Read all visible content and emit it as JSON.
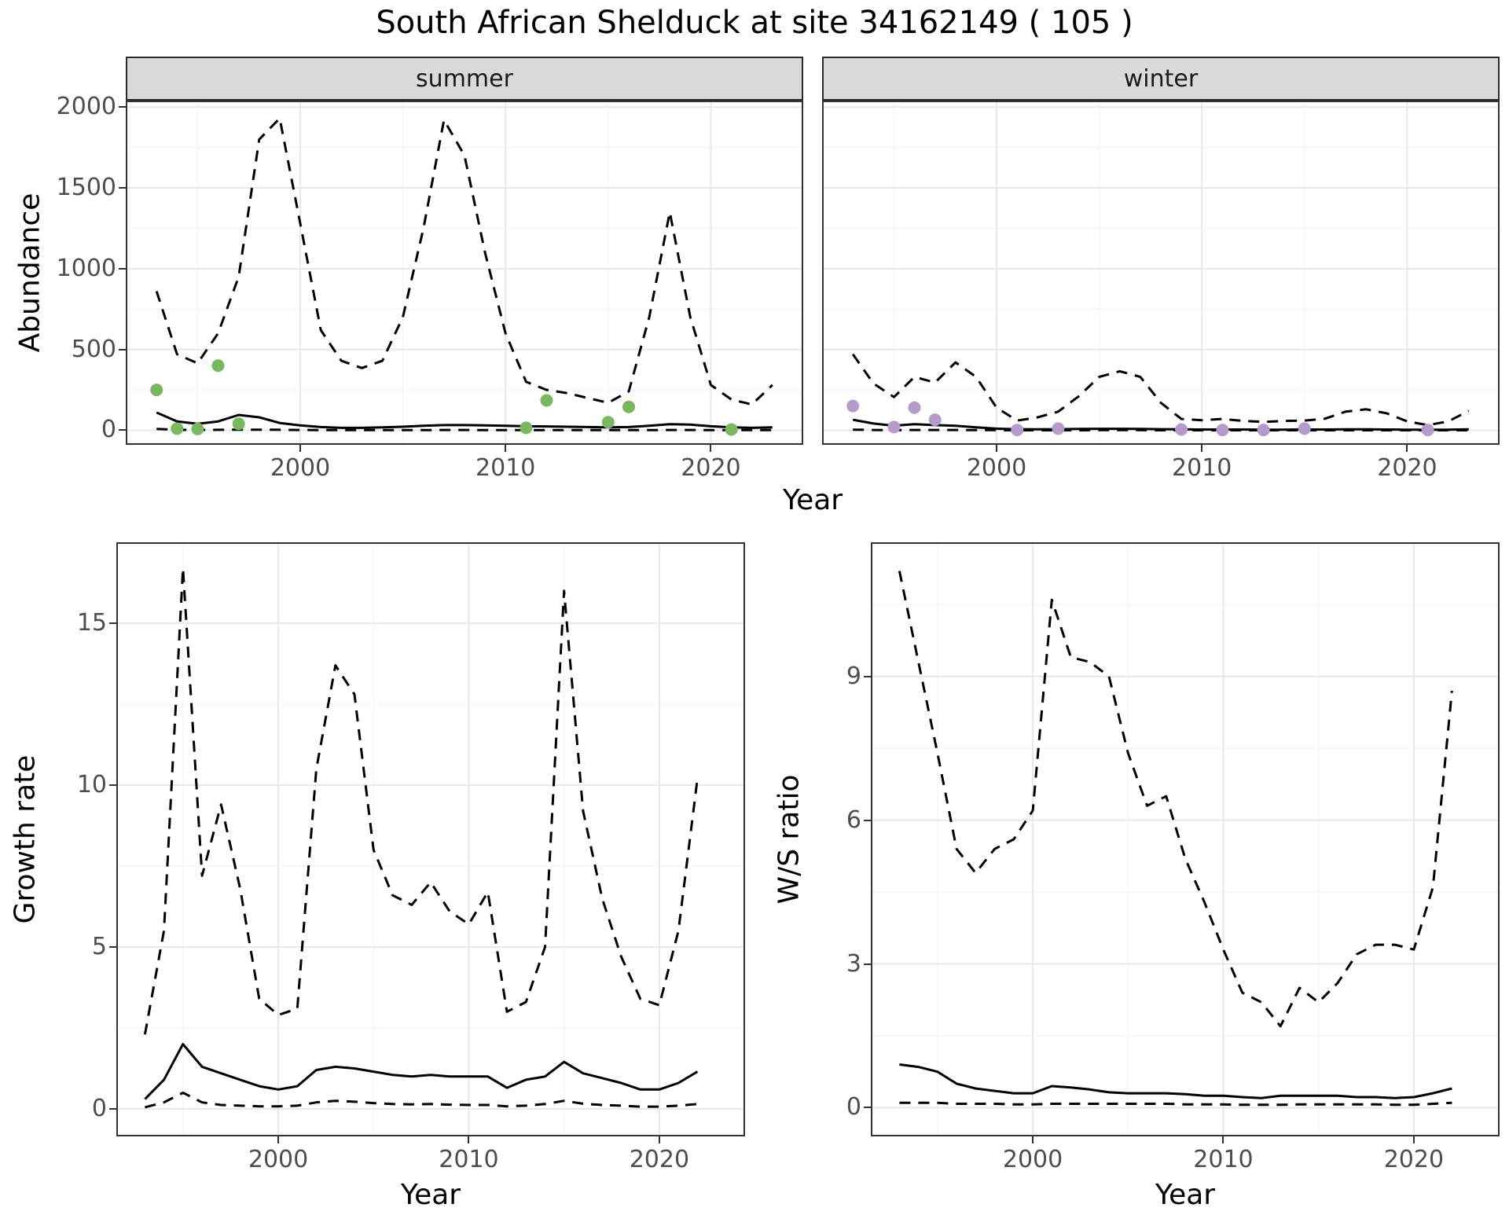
{
  "title": "South African Shelduck at site 34162149 ( 105 )",
  "colors": {
    "line": "#000000",
    "grid_major": "#e6e6e6",
    "grid_minor": "#f3f3f3",
    "panel_border": "#333333",
    "strip_bg": "#d9d9d9",
    "strip_text": "#1a1a1a",
    "tick_text": "#4d4d4d",
    "summer_points": "#7bb661",
    "winter_points": "#b49bca"
  },
  "top": {
    "ylabel": "Abundance",
    "xlabel": "Year",
    "facets": [
      "summer",
      "winter"
    ]
  },
  "bottom_left": {
    "ylabel": "Growth rate",
    "xlabel": "Year"
  },
  "bottom_right": {
    "ylabel": "W/S ratio",
    "xlabel": "Year"
  },
  "chart_data": [
    {
      "id": "abundance-summer",
      "type": "line",
      "facet": "summer",
      "xlabel": "Year",
      "ylabel": "Abundance",
      "x": [
        1993,
        1994,
        1995,
        1996,
        1997,
        1998,
        1999,
        2000,
        2001,
        2002,
        2003,
        2004,
        2005,
        2006,
        2007,
        2008,
        2009,
        2010,
        2011,
        2012,
        2013,
        2014,
        2015,
        2016,
        2017,
        2018,
        2019,
        2020,
        2021,
        2022,
        2023
      ],
      "series": [
        {
          "name": "upper-95-ci",
          "style": "dashed",
          "values": [
            860,
            470,
            415,
            600,
            950,
            1800,
            1930,
            1280,
            620,
            430,
            385,
            430,
            700,
            1250,
            1920,
            1700,
            1100,
            600,
            300,
            250,
            230,
            200,
            170,
            240,
            700,
            1350,
            700,
            280,
            190,
            160,
            280
          ]
        },
        {
          "name": "model-median",
          "style": "solid",
          "values": [
            110,
            55,
            40,
            55,
            95,
            80,
            45,
            30,
            20,
            15,
            15,
            18,
            22,
            28,
            32,
            32,
            30,
            28,
            25,
            24,
            22,
            20,
            18,
            20,
            28,
            38,
            35,
            25,
            18,
            15,
            18
          ]
        },
        {
          "name": "lower-95-ci",
          "style": "dashed",
          "values": [
            8,
            3,
            2,
            3,
            4,
            4,
            3,
            2,
            1,
            1,
            1,
            1,
            1,
            1,
            2,
            2,
            1,
            1,
            1,
            1,
            1,
            1,
            1,
            1,
            1,
            2,
            2,
            1,
            1,
            1,
            1
          ]
        }
      ],
      "points": {
        "name": "observed-summer-count",
        "color": "#7bb661",
        "x": [
          1993,
          1994,
          1995,
          1996,
          1997,
          2011,
          2012,
          2015,
          2016,
          2021
        ],
        "y": [
          250,
          10,
          8,
          400,
          40,
          15,
          185,
          50,
          145,
          5
        ]
      },
      "xlim": [
        1991.5,
        2024.5
      ],
      "ylim": [
        -90,
        2040
      ],
      "xticks": [
        2000,
        2010,
        2020
      ],
      "yticks": [
        0,
        500,
        1000,
        1500,
        2000
      ],
      "grid": true,
      "legend": "none"
    },
    {
      "id": "abundance-winter",
      "type": "line",
      "facet": "winter",
      "xlabel": "Year",
      "ylabel": "Abundance",
      "x": [
        1993,
        1994,
        1995,
        1996,
        1997,
        1998,
        1999,
        2000,
        2001,
        2002,
        2003,
        2004,
        2005,
        2006,
        2007,
        2008,
        2009,
        2010,
        2011,
        2012,
        2013,
        2014,
        2015,
        2016,
        2017,
        2018,
        2019,
        2020,
        2021,
        2022,
        2023
      ],
      "series": [
        {
          "name": "upper-95-ci",
          "style": "dashed",
          "values": [
            470,
            290,
            205,
            330,
            295,
            420,
            330,
            140,
            60,
            80,
            115,
            210,
            330,
            365,
            330,
            170,
            70,
            62,
            70,
            58,
            52,
            58,
            60,
            72,
            115,
            130,
            105,
            55,
            32,
            55,
            120
          ]
        },
        {
          "name": "model-median",
          "style": "solid",
          "values": [
            65,
            42,
            28,
            38,
            32,
            28,
            18,
            10,
            7,
            6,
            7,
            8,
            9,
            9,
            8,
            7,
            6,
            5,
            5,
            5,
            4,
            4,
            5,
            5,
            6,
            6,
            5,
            4,
            3,
            4,
            6
          ]
        },
        {
          "name": "lower-95-ci",
          "style": "dashed",
          "values": [
            4,
            2,
            1,
            2,
            2,
            2,
            1,
            1,
            0,
            0,
            0,
            0,
            1,
            1,
            1,
            0,
            0,
            0,
            0,
            0,
            0,
            0,
            0,
            0,
            0,
            0,
            0,
            0,
            0,
            0,
            0
          ]
        }
      ],
      "points": {
        "name": "observed-winter-count",
        "color": "#b49bca",
        "x": [
          1993,
          1995,
          1996,
          1997,
          2001,
          2003,
          2009,
          2011,
          2013,
          2015,
          2021
        ],
        "y": [
          150,
          20,
          140,
          65,
          2,
          10,
          5,
          2,
          2,
          10,
          2
        ]
      },
      "xlim": [
        1991.5,
        2024.5
      ],
      "ylim": [
        -90,
        2040
      ],
      "xticks": [
        2000,
        2010,
        2020
      ],
      "yticks": [
        0,
        500,
        1000,
        1500,
        2000
      ],
      "grid": true,
      "legend": "none"
    },
    {
      "id": "growth-rate",
      "type": "line",
      "xlabel": "Year",
      "ylabel": "Growth rate",
      "x": [
        1993,
        1994,
        1995,
        1996,
        1997,
        1998,
        1999,
        2000,
        2001,
        2002,
        2003,
        2004,
        2005,
        2006,
        2007,
        2008,
        2009,
        2010,
        2011,
        2012,
        2013,
        2014,
        2015,
        2016,
        2017,
        2018,
        2019,
        2020,
        2021,
        2022
      ],
      "series": [
        {
          "name": "upper-95-ci",
          "style": "dashed",
          "values": [
            2.3,
            5.5,
            16.7,
            7.2,
            9.4,
            6.8,
            3.4,
            2.9,
            3.1,
            10.5,
            13.7,
            12.8,
            8.0,
            6.6,
            6.3,
            7.0,
            6.1,
            5.7,
            6.7,
            3.0,
            3.3,
            5.0,
            16.0,
            9.2,
            6.5,
            4.7,
            3.4,
            3.2,
            5.5,
            10.2
          ]
        },
        {
          "name": "model-median",
          "style": "solid",
          "values": [
            0.3,
            0.9,
            2.0,
            1.3,
            1.1,
            0.9,
            0.7,
            0.6,
            0.7,
            1.2,
            1.3,
            1.25,
            1.15,
            1.05,
            1.0,
            1.05,
            1.0,
            1.0,
            1.0,
            0.65,
            0.9,
            1.0,
            1.45,
            1.1,
            0.95,
            0.8,
            0.6,
            0.6,
            0.8,
            1.15
          ]
        },
        {
          "name": "lower-95-ci",
          "style": "dashed",
          "values": [
            0.05,
            0.2,
            0.5,
            0.2,
            0.12,
            0.1,
            0.08,
            0.08,
            0.1,
            0.2,
            0.25,
            0.22,
            0.18,
            0.15,
            0.14,
            0.15,
            0.13,
            0.12,
            0.12,
            0.08,
            0.1,
            0.15,
            0.25,
            0.16,
            0.12,
            0.1,
            0.07,
            0.07,
            0.1,
            0.15
          ]
        }
      ],
      "xlim": [
        1991.5,
        2024.5
      ],
      "ylim": [
        -0.85,
        17.5
      ],
      "xticks": [
        2000,
        2010,
        2020
      ],
      "yticks": [
        0,
        5,
        10,
        15
      ],
      "grid": true,
      "legend": "none"
    },
    {
      "id": "ws-ratio",
      "type": "line",
      "xlabel": "Year",
      "ylabel": "W/S ratio",
      "x": [
        1993,
        1994,
        1995,
        1996,
        1997,
        1998,
        1999,
        2000,
        2001,
        2002,
        2003,
        2004,
        2005,
        2006,
        2007,
        2008,
        2009,
        2010,
        2011,
        2012,
        2013,
        2014,
        2015,
        2016,
        2017,
        2018,
        2019,
        2020,
        2021,
        2022
      ],
      "series": [
        {
          "name": "upper-95-ci",
          "style": "dashed",
          "values": [
            11.2,
            9.3,
            7.4,
            5.4,
            4.9,
            5.4,
            5.6,
            6.2,
            10.6,
            9.4,
            9.3,
            9.0,
            7.4,
            6.3,
            6.5,
            5.2,
            4.3,
            3.3,
            2.4,
            2.2,
            1.7,
            2.5,
            2.2,
            2.6,
            3.2,
            3.4,
            3.4,
            3.3,
            4.6,
            8.7
          ]
        },
        {
          "name": "model-median",
          "style": "solid",
          "values": [
            0.9,
            0.85,
            0.75,
            0.5,
            0.4,
            0.35,
            0.3,
            0.3,
            0.45,
            0.42,
            0.38,
            0.32,
            0.3,
            0.3,
            0.3,
            0.28,
            0.25,
            0.25,
            0.22,
            0.2,
            0.25,
            0.25,
            0.25,
            0.25,
            0.22,
            0.22,
            0.2,
            0.22,
            0.3,
            0.4
          ]
        },
        {
          "name": "lower-95-ci",
          "style": "dashed",
          "values": [
            0.1,
            0.1,
            0.1,
            0.08,
            0.08,
            0.08,
            0.07,
            0.07,
            0.08,
            0.08,
            0.08,
            0.08,
            0.08,
            0.08,
            0.08,
            0.07,
            0.07,
            0.07,
            0.06,
            0.06,
            0.06,
            0.07,
            0.07,
            0.07,
            0.07,
            0.07,
            0.06,
            0.06,
            0.08,
            0.1
          ]
        }
      ],
      "xlim": [
        1991.5,
        2024.5
      ],
      "ylim": [
        -0.6,
        11.8
      ],
      "xticks": [
        2000,
        2010,
        2020
      ],
      "yticks": [
        0,
        3,
        6,
        9
      ],
      "grid": true,
      "legend": "none"
    }
  ]
}
